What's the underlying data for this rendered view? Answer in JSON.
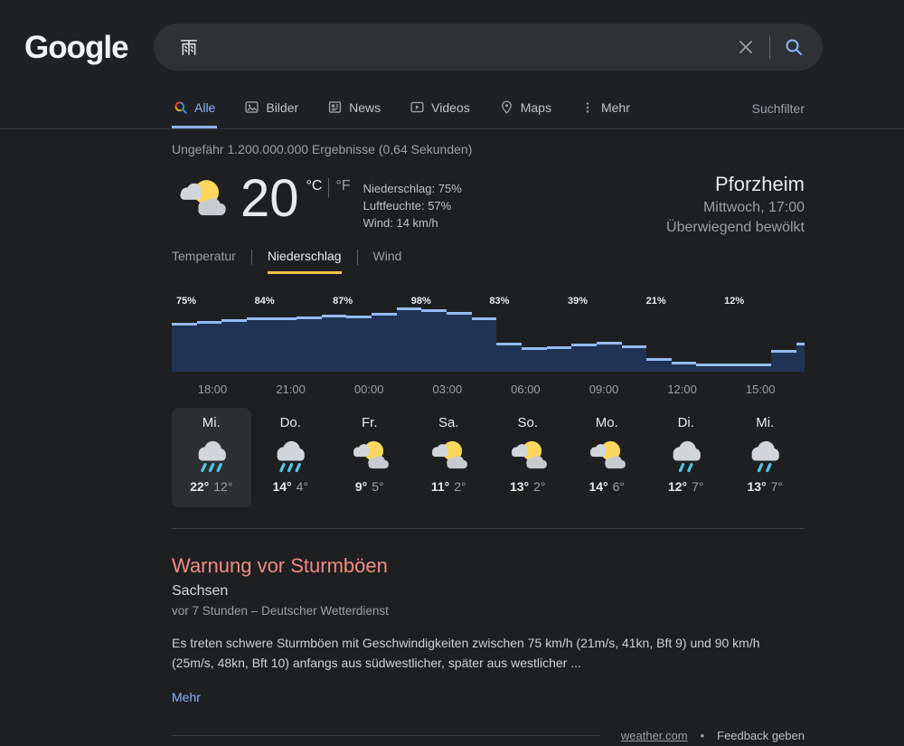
{
  "page": {
    "bg": "#1e1f21",
    "header_bg": "#202124",
    "accent_blue": "#8ab4f8",
    "accent_yellow": "#f3c24b",
    "warning_red": "#f28b82"
  },
  "header": {
    "logo_text": "Google",
    "search": {
      "query": "雨"
    },
    "tabs": [
      {
        "label": "Alle",
        "icon": "search-colored-icon",
        "active": true
      },
      {
        "label": "Bilder",
        "icon": "image-icon",
        "active": false
      },
      {
        "label": "News",
        "icon": "news-icon",
        "active": false
      },
      {
        "label": "Videos",
        "icon": "video-icon",
        "active": false
      },
      {
        "label": "Maps",
        "icon": "map-pin-icon",
        "active": false
      },
      {
        "label": "Mehr",
        "icon": "more-dots-icon",
        "active": false
      }
    ],
    "filter_label": "Suchfilter"
  },
  "stats_line": "Ungefähr 1.200.000.000 Ergebnisse (0,64 Sekunden)",
  "weather": {
    "location": "Pforzheim",
    "datetime": "Mittwoch, 17:00",
    "condition": "Überwiegend bewölkt",
    "temperature": "20",
    "unit_celsius": "°C",
    "unit_fahrenheit": "°F",
    "details": {
      "precipitation": "Niederschlag: 75%",
      "humidity": "Luftfeuchte: 57%",
      "wind": "Wind: 14 km/h"
    },
    "tabs": [
      {
        "label": "Temperatur",
        "active": false
      },
      {
        "label": "Niederschlag",
        "active": true
      },
      {
        "label": "Wind",
        "active": false
      }
    ],
    "days": [
      {
        "day": "Mi.",
        "icon": "rain-heavy",
        "high": "22°",
        "low": "12°",
        "selected": true
      },
      {
        "day": "Do.",
        "icon": "rain-heavy",
        "high": "14°",
        "low": "4°",
        "selected": false
      },
      {
        "day": "Fr.",
        "icon": "sun-clouds",
        "high": "9°",
        "low": "5°",
        "selected": false
      },
      {
        "day": "Sa.",
        "icon": "sun-clouds",
        "high": "11°",
        "low": "2°",
        "selected": false
      },
      {
        "day": "So.",
        "icon": "sun-clouds",
        "high": "13°",
        "low": "2°",
        "selected": false
      },
      {
        "day": "Mo.",
        "icon": "sun-clouds",
        "high": "14°",
        "low": "6°",
        "selected": false
      },
      {
        "day": "Di.",
        "icon": "rain-light",
        "high": "12°",
        "low": "7°",
        "selected": false
      },
      {
        "day": "Mi.",
        "icon": "rain-light",
        "high": "13°",
        "low": "7°",
        "selected": false
      }
    ]
  },
  "chart_data": {
    "type": "bar",
    "title": "",
    "unit": "%",
    "ylim": [
      0,
      100
    ],
    "hourly_values": [
      75,
      78,
      81,
      84,
      83,
      85,
      87,
      86,
      90,
      98,
      96,
      91,
      83,
      45,
      38,
      39,
      43,
      46,
      40,
      21,
      15,
      13,
      12,
      12,
      33
    ],
    "edge_value": 45,
    "pct_labels": [
      "75%",
      "84%",
      "87%",
      "98%",
      "83%",
      "39%",
      "21%",
      "12%"
    ],
    "time_labels": [
      "18:00",
      "21:00",
      "00:00",
      "03:00",
      "06:00",
      "09:00",
      "12:00",
      "15:00"
    ],
    "bar_fill": "#203354",
    "bar_cap": "#93bbf5"
  },
  "warning": {
    "title": "Warnung vor Sturmböen",
    "region": "Sachsen",
    "meta": "vor 7 Stunden – Deutscher Wetterdienst",
    "body": "Es treten schwere Sturmböen mit Geschwindigkeiten zwischen 75 km/h (21m/s, 41kn, Bft 9) und 90 km/h (25m/s, 48kn, Bft 10) anfangs aus südwestlicher, später aus westlicher ...",
    "more_label": "Mehr"
  },
  "footer": {
    "source": "weather.com",
    "separator": "•",
    "feedback": "Feedback geben"
  }
}
